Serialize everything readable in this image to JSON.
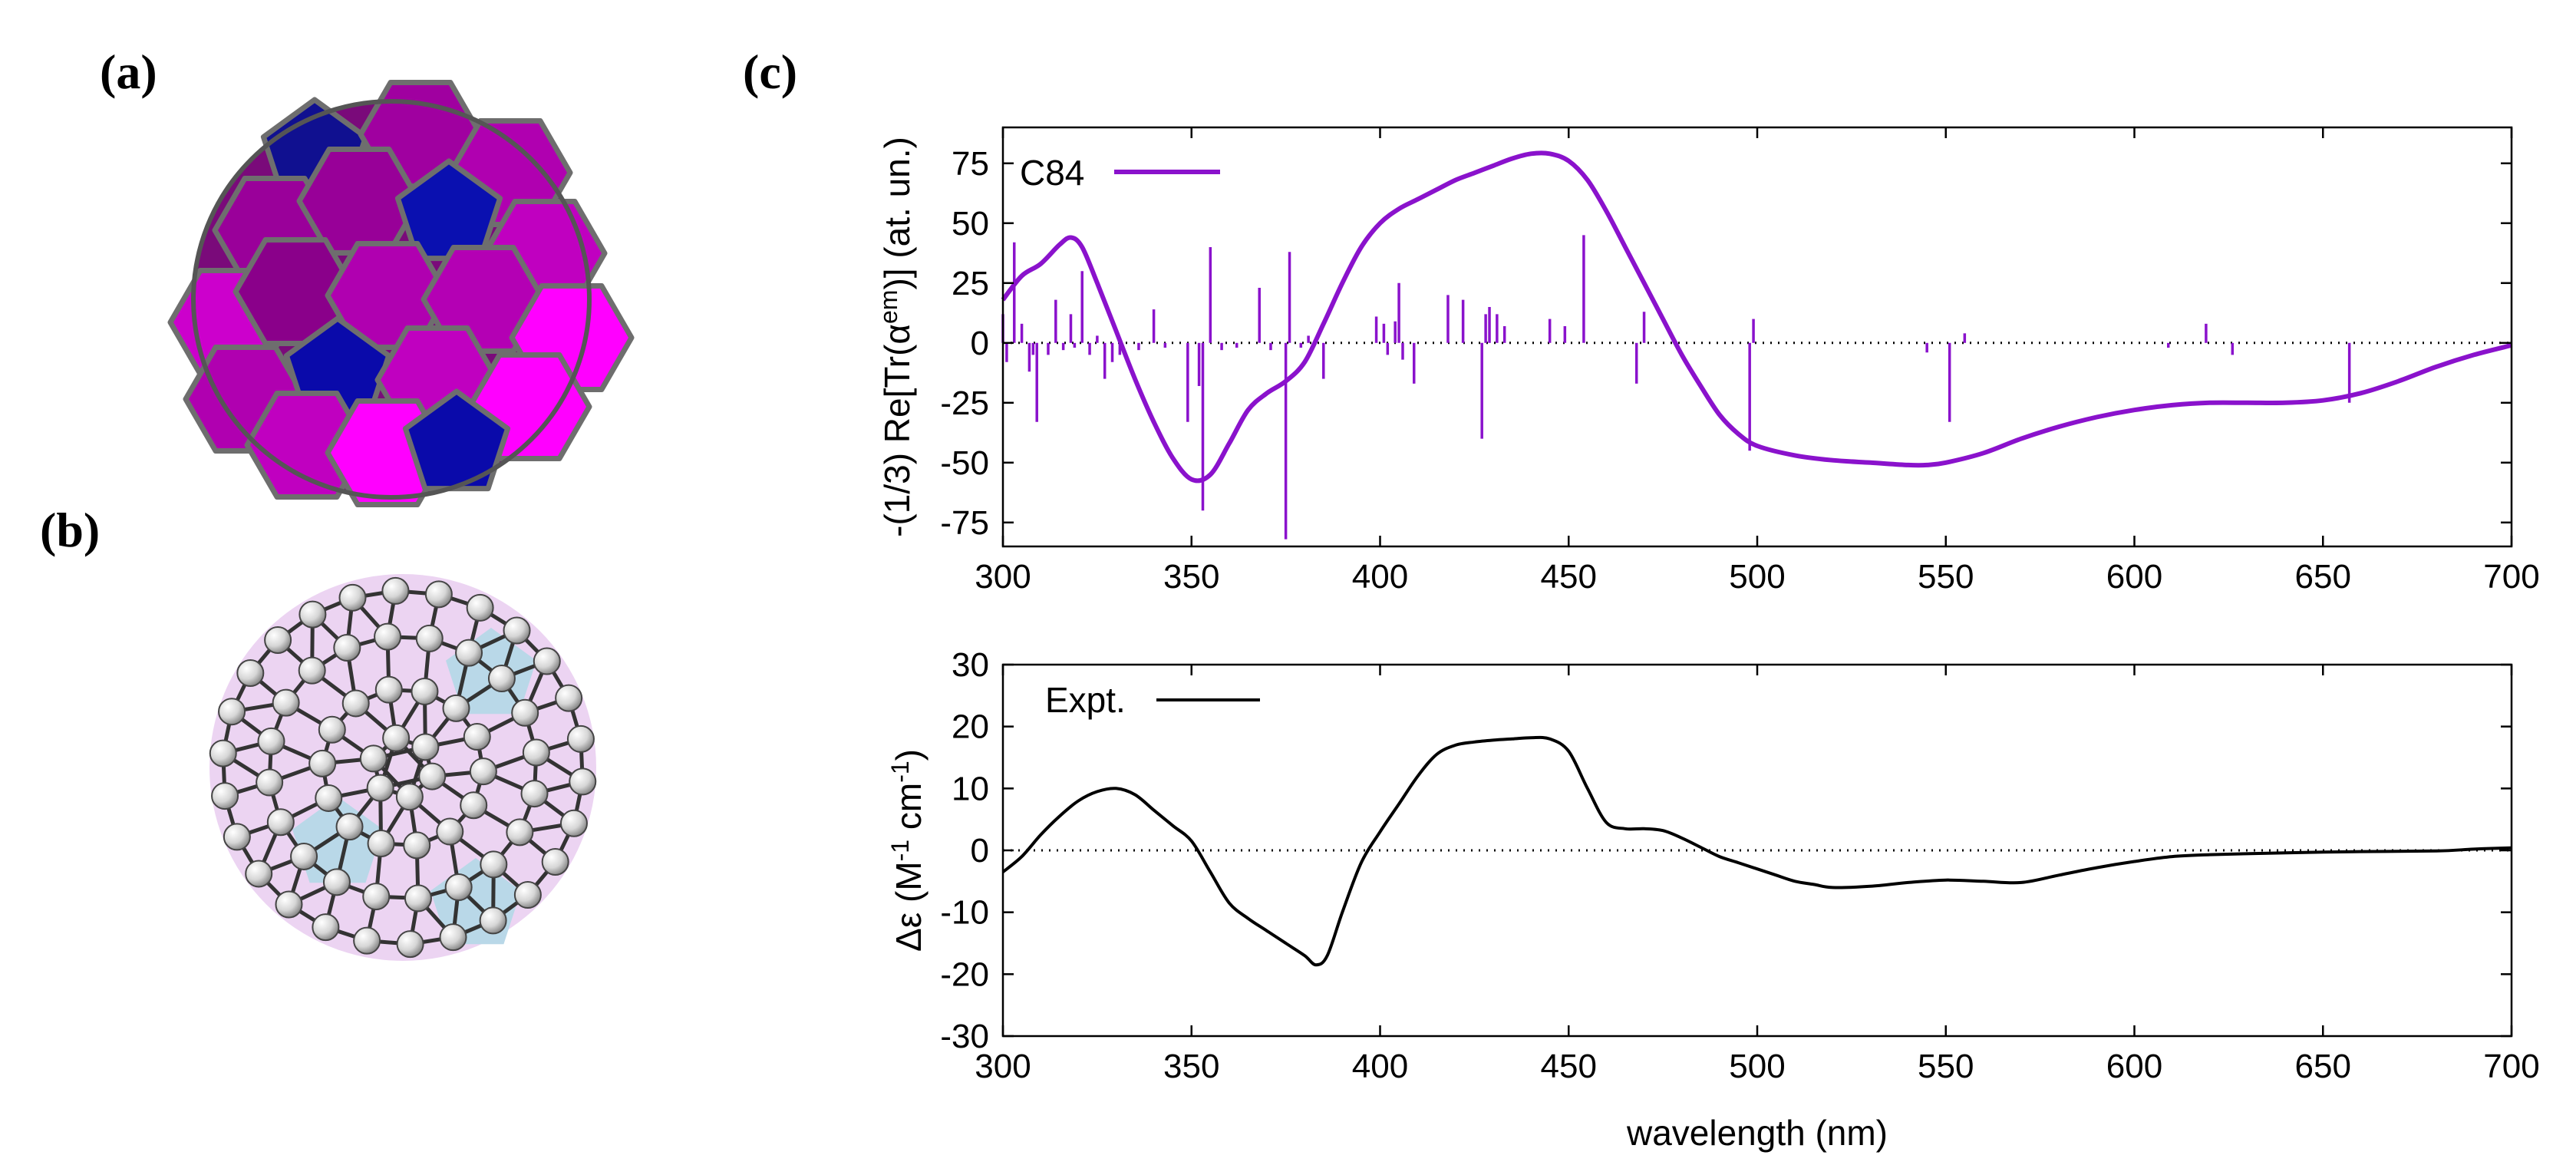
{
  "panels": {
    "a": "(a)",
    "b": "(b)",
    "c": "(c)"
  },
  "colors": {
    "theory": "#8a12cc",
    "expt": "#000000",
    "pent_a": "#0a0aaa",
    "hex_a": "#b000b0",
    "pent_b": "#b9d8e8",
    "hex_b": "#e9cdf0"
  },
  "chart_data": [
    {
      "type": "line",
      "title": "",
      "xlabel": "",
      "ylabel": "-(1/3) Re[Tr(α^em)] (at. un.)",
      "ylabel_parts": {
        "pre": "-(1/3) Re[Tr(α",
        "sup": "em",
        "post": ")] (at. un.)"
      },
      "xlim": [
        300,
        700
      ],
      "ylim": [
        -85,
        90
      ],
      "xticks": [
        300,
        350,
        400,
        450,
        500,
        550,
        600,
        650,
        700
      ],
      "yticks": [
        -75,
        -50,
        -25,
        0,
        25,
        50,
        75
      ],
      "legend": "top-left",
      "series": [
        {
          "name": "C84",
          "x": [
            300,
            305,
            310,
            315,
            318,
            321,
            325,
            330,
            335,
            340,
            345,
            350,
            355,
            360,
            365,
            370,
            375,
            380,
            385,
            390,
            395,
            400,
            405,
            410,
            415,
            420,
            425,
            430,
            435,
            440,
            445,
            450,
            455,
            460,
            465,
            470,
            475,
            480,
            485,
            490,
            495,
            500,
            510,
            520,
            530,
            540,
            545,
            550,
            560,
            570,
            580,
            590,
            600,
            610,
            620,
            630,
            640,
            650,
            660,
            670,
            680,
            690,
            700
          ],
          "y": [
            18,
            28,
            33,
            41,
            44,
            40,
            25,
            5,
            -15,
            -33,
            -48,
            -57,
            -55,
            -42,
            -28,
            -21,
            -16,
            -8,
            8,
            25,
            40,
            50,
            56,
            60,
            64,
            68,
            71,
            74,
            77,
            79,
            79,
            76,
            68,
            55,
            40,
            25,
            10,
            -5,
            -18,
            -30,
            -38,
            -43,
            -47,
            -49,
            -50,
            -51,
            -51,
            -50,
            -46,
            -40,
            -35,
            -31,
            -28,
            -26,
            -25,
            -25,
            -25,
            -24,
            -21,
            -16,
            -10,
            -5,
            -1
          ]
        }
      ],
      "sticks": {
        "x": [
          300,
          301,
          303,
          305,
          307,
          308,
          309,
          312,
          314,
          316,
          318,
          319,
          321,
          323,
          325,
          327,
          329,
          331,
          336,
          340,
          343,
          349,
          352,
          353,
          355,
          358,
          362,
          368,
          371,
          375,
          376,
          379,
          381,
          385,
          399,
          401,
          402,
          404,
          405,
          406,
          409,
          418,
          422,
          427,
          428,
          429,
          431,
          433,
          445,
          449,
          454,
          468,
          470,
          498,
          499,
          545,
          551,
          555,
          609,
          619,
          626,
          657
        ],
        "y": [
          12,
          -8,
          42,
          8,
          -12,
          -5,
          -33,
          -5,
          18,
          -3,
          12,
          -2,
          30,
          -5,
          3,
          -15,
          -8,
          -5,
          -3,
          14,
          -2,
          -33,
          -18,
          -70,
          40,
          -3,
          -2,
          23,
          -3,
          -82,
          38,
          -2,
          3,
          -15,
          11,
          8,
          -5,
          9,
          25,
          -7,
          -17,
          20,
          18,
          -40,
          12,
          15,
          12,
          7,
          10,
          7,
          45,
          -17,
          13,
          -45,
          10,
          -4,
          -33,
          4,
          -2,
          8,
          -5,
          -25
        ]
      }
    },
    {
      "type": "line",
      "title": "",
      "xlabel": "wavelength (nm)",
      "ylabel": "Δε (M^-1 cm^-1)",
      "ylabel_parts": {
        "pre": "Δε (M",
        "sup1": "-1",
        "mid": " cm",
        "sup2": "-1",
        "post": ")"
      },
      "xlim": [
        300,
        700
      ],
      "ylim": [
        -30,
        30
      ],
      "xticks": [
        300,
        350,
        400,
        450,
        500,
        550,
        600,
        650,
        700
      ],
      "yticks": [
        -30,
        -20,
        -10,
        0,
        10,
        20,
        30
      ],
      "legend": "top-left",
      "series": [
        {
          "name": "Expt.",
          "x": [
            300,
            305,
            310,
            315,
            320,
            325,
            330,
            335,
            340,
            345,
            350,
            355,
            360,
            365,
            370,
            375,
            380,
            383,
            386,
            390,
            395,
            400,
            405,
            410,
            415,
            420,
            425,
            430,
            435,
            440,
            445,
            450,
            455,
            460,
            465,
            470,
            475,
            480,
            485,
            490,
            495,
            500,
            505,
            510,
            515,
            520,
            530,
            540,
            550,
            560,
            570,
            580,
            590,
            600,
            610,
            620,
            640,
            660,
            680,
            690,
            700
          ],
          "y": [
            -3.5,
            -1,
            2.5,
            5.5,
            8,
            9.5,
            10,
            9,
            6.5,
            4,
            1.5,
            -3.5,
            -8.5,
            -11,
            -13,
            -15,
            -17,
            -18.5,
            -17,
            -10,
            -2,
            3,
            7.5,
            12,
            15.5,
            17,
            17.5,
            17.8,
            18,
            18.2,
            18,
            16,
            10,
            4.5,
            3.5,
            3.5,
            3.2,
            2,
            0.5,
            -1,
            -2,
            -3,
            -4,
            -5,
            -5.5,
            -6,
            -5.8,
            -5.2,
            -4.8,
            -5,
            -5.2,
            -4,
            -2.8,
            -1.8,
            -1,
            -0.7,
            -0.4,
            -0.2,
            -0.1,
            0.2,
            0.4
          ]
        }
      ]
    }
  ]
}
